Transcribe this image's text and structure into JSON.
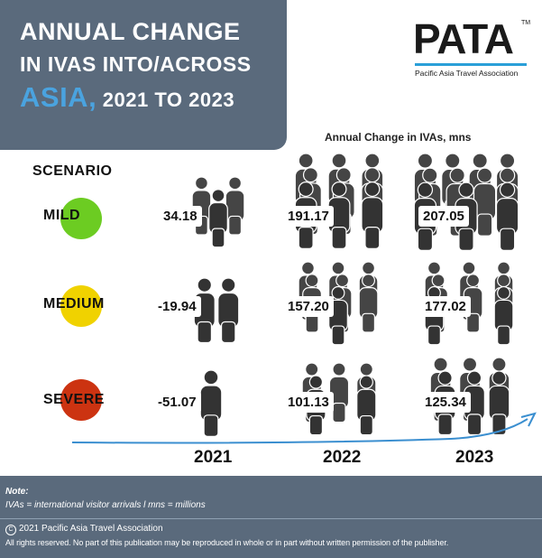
{
  "header": {
    "title_line1": "ANNUAL CHANGE",
    "title_line2": "IN IVAS INTO/ACROSS",
    "title_accent": "ASIA,",
    "title_line3_rest": " 2021 TO 2023",
    "accent_color": "#4aa3df",
    "panel_color": "#5a6a7c"
  },
  "logo": {
    "text": "PATA",
    "tm": "TM",
    "subtitle": "Pacific Asia Travel Association"
  },
  "chart_data": {
    "type": "table",
    "title": "Annual Change in IVAs, mns",
    "row_header": "SCENARIO",
    "categories": [
      "2021",
      "2022",
      "2023"
    ],
    "series": [
      {
        "name": "MILD",
        "color": "#6ccc22",
        "values": [
          "34.18",
          "191.17",
          "207.05"
        ]
      },
      {
        "name": "MEDIUM",
        "color": "#f0d200",
        "values": [
          "-19.94",
          "157.20",
          "177.02"
        ]
      },
      {
        "name": "SEVERE",
        "color": "#cc3311",
        "values": [
          "-51.07",
          "101.13",
          "125.34"
        ]
      }
    ]
  },
  "footer": {
    "note_heading": "Note:",
    "note_text": "IVAs = international visitor arrivals l mns = millions",
    "copyright_symbol": "C",
    "copyright": "2021 Pacific Asia Travel Association",
    "rights": "All rights reserved. No part of this publication may be reproduced in whole or in part without written permission of the publisher."
  }
}
